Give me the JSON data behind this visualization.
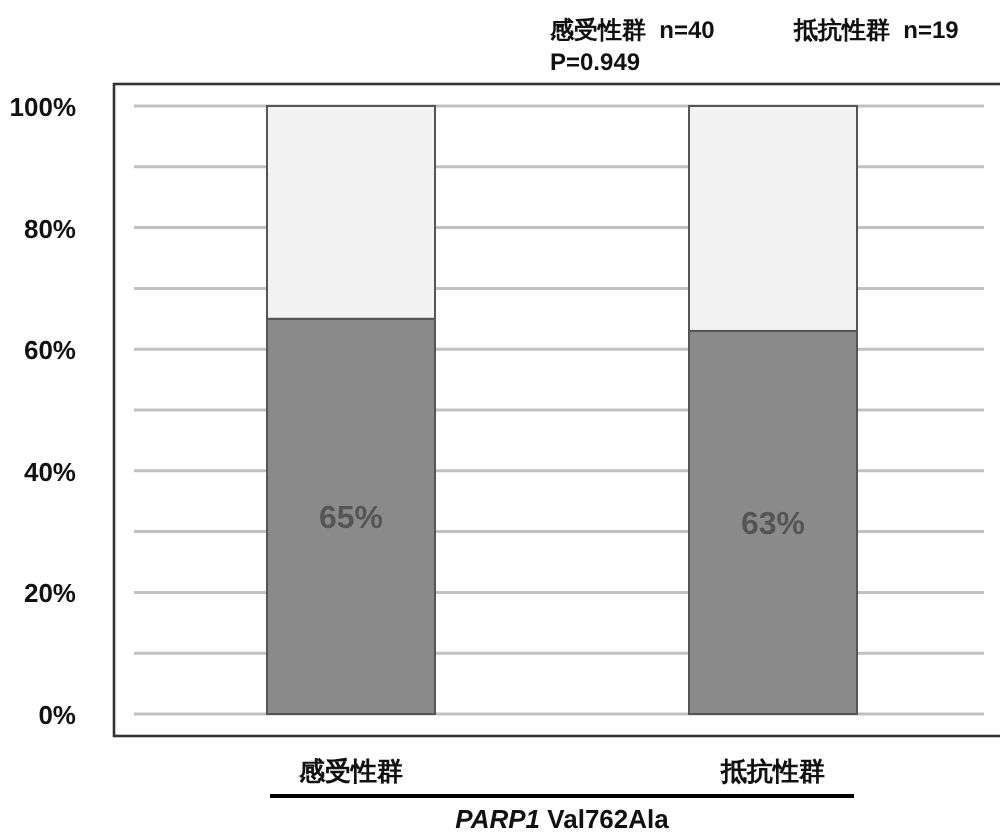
{
  "chart_data": {
    "type": "bar",
    "stacked": true,
    "categories": [
      "感受性群",
      "抵抗性群"
    ],
    "series": [
      {
        "color": "#8a8a8a",
        "values": [
          65,
          63
        ],
        "value_labels": [
          "65%",
          "63%"
        ]
      },
      {
        "color": "#f2f2f2",
        "values": [
          35,
          37
        ]
      }
    ],
    "ylim": [
      0,
      100
    ],
    "yticks": [
      {
        "value": 0,
        "label": "0%"
      },
      {
        "value": 10,
        "label": null
      },
      {
        "value": 20,
        "label": "20%"
      },
      {
        "value": 30,
        "label": null
      },
      {
        "value": 40,
        "label": "40%"
      },
      {
        "value": 50,
        "label": null
      },
      {
        "value": 60,
        "label": "60%"
      },
      {
        "value": 70,
        "label": null
      },
      {
        "value": 80,
        "label": "80%"
      },
      {
        "value": 90,
        "label": null
      },
      {
        "value": 100,
        "label": "100%"
      }
    ],
    "grid": "y",
    "xlabel": "*PARP1* Val762Ala",
    "annotations": [
      "感受性群  n=40",
      "抵抗性群  n=19",
      "P=0.949"
    ]
  }
}
